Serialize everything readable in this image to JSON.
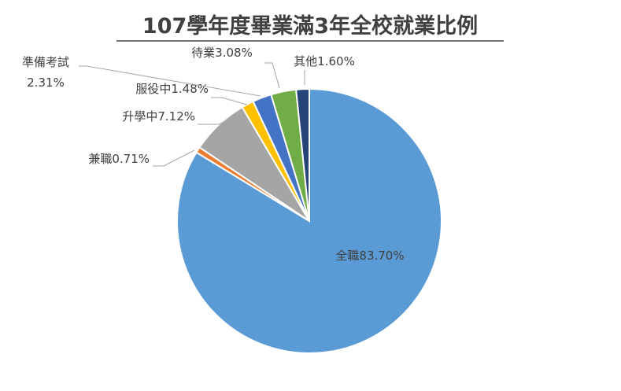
{
  "chart_data": {
    "type": "pie",
    "title": "107學年度畢業滿3年全校就業比例",
    "categories": [
      "全職",
      "兼職",
      "升學中",
      "服役中",
      "準備考試",
      "待業",
      "其他"
    ],
    "values": [
      83.7,
      0.71,
      7.12,
      1.48,
      2.31,
      3.08,
      1.6
    ],
    "value_labels": [
      "83.70%",
      "0.71%",
      "7.12%",
      "1.48%",
      "2.31%",
      "3.08%",
      "1.60%"
    ],
    "colors": [
      "#5b9bd5",
      "#ed7d31",
      "#a5a5a5",
      "#ffc000",
      "#4472c4",
      "#70ad47",
      "#264478"
    ]
  }
}
